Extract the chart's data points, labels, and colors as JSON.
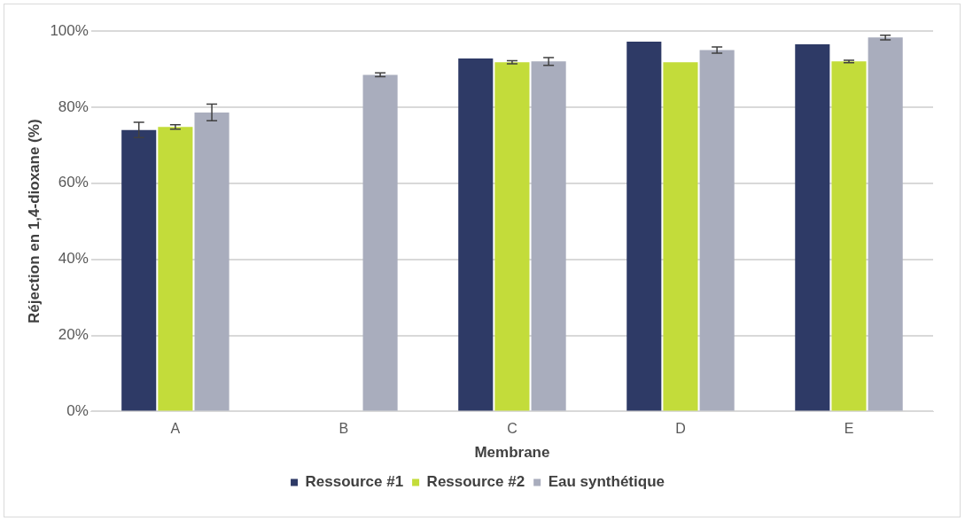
{
  "chart_data": {
    "type": "bar",
    "xlabel": "Membrane",
    "ylabel": "Réjection en 1,4-dioxane (%)",
    "categories": [
      "A",
      "B",
      "C",
      "D",
      "E"
    ],
    "series": [
      {
        "name": "Ressource #1",
        "color": "#2e3a66",
        "values": [
          74,
          null,
          92.8,
          97.2,
          96.5
        ],
        "errors": [
          2,
          null,
          null,
          null,
          null
        ]
      },
      {
        "name": "Ressource #2",
        "color": "#c3dc3a",
        "values": [
          74.8,
          null,
          91.8,
          91.8,
          92
        ],
        "errors": [
          0.6,
          null,
          0.4,
          null,
          0.3
        ]
      },
      {
        "name": "Eau synthétique",
        "color": "#a9adbd",
        "values": [
          78.6,
          88.5,
          92,
          95,
          98.3
        ],
        "errors": [
          2.2,
          0.5,
          1,
          0.8,
          0.6
        ]
      }
    ],
    "ylim": [
      0,
      100
    ],
    "yticks": [
      {
        "value": 0,
        "label": "0%"
      },
      {
        "value": 20,
        "label": "20%"
      },
      {
        "value": 40,
        "label": "40%"
      },
      {
        "value": 60,
        "label": "60%"
      },
      {
        "value": 80,
        "label": "80%"
      },
      {
        "value": 100,
        "label": "100%"
      }
    ],
    "grid": "y",
    "legend": "bottom"
  }
}
